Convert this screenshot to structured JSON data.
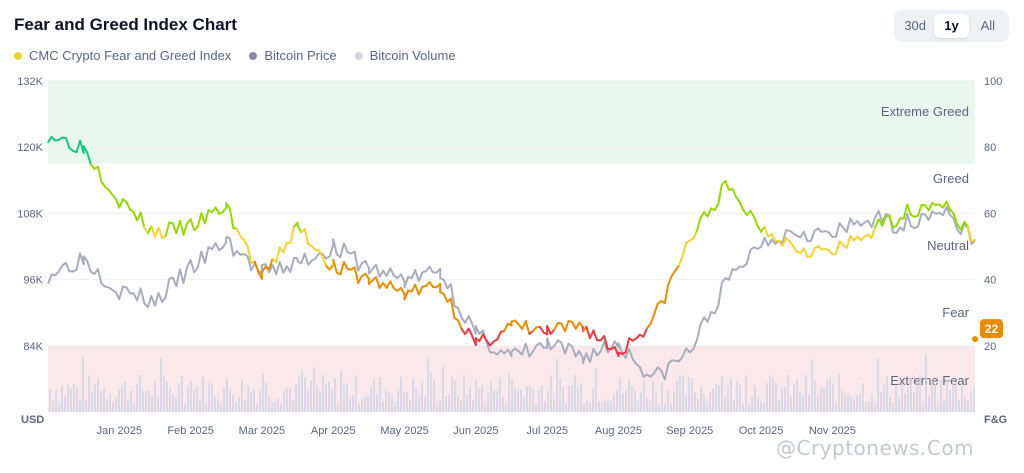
{
  "header": {
    "title": "Fear and Greed Index Chart"
  },
  "range_selector": {
    "options": [
      "30d",
      "1y",
      "All"
    ],
    "selected": "1y"
  },
  "legend": [
    {
      "label": "CMC Crypto Fear and Greed Index",
      "color": "#f0d12e"
    },
    {
      "label": "Bitcoin Price",
      "color": "#858ca2"
    },
    {
      "label": "Bitcoin Volume",
      "color": "#cfd6e4"
    }
  ],
  "watermark": {
    "text": "@Cryptonews.Com"
  },
  "chart_data": {
    "type": "line",
    "y_left": {
      "label": "USD",
      "ticks": [
        "132K",
        "120K",
        "108K",
        "96K",
        "84K"
      ],
      "range": [
        72000,
        132000
      ]
    },
    "y_right": {
      "label": "F&G",
      "ticks": [
        100,
        80,
        60,
        40,
        20
      ],
      "range": [
        0,
        100
      ]
    },
    "x_ticks": [
      "Jan 2025",
      "Feb 2025",
      "Mar 2025",
      "Apr 2025",
      "May 2025",
      "Jun 2025",
      "Jul 2025",
      "Aug 2025",
      "Sep 2025",
      "Oct 2025",
      "Nov 2025"
    ],
    "zones": [
      {
        "label": "Extreme Greed",
        "from": 75,
        "to": 100,
        "color": "#e9f8ee"
      },
      {
        "label": "Greed",
        "from": 55,
        "to": 75
      },
      {
        "label": "Neutral",
        "from": 45,
        "to": 55
      },
      {
        "label": "Fear",
        "from": 25,
        "to": 45
      },
      {
        "label": "Extreme Fear",
        "from": 0,
        "to": 20,
        "color": "#fbe8ea"
      }
    ],
    "current_value": 22,
    "fg_colors": {
      "extreme_greed": "#16c784",
      "greed": "#93d900",
      "neutral": "#f3d42f",
      "fear": "#ea8c00",
      "extreme_fear": "#ea3943"
    },
    "series": [
      {
        "name": "Bitcoin Price",
        "x": [
          0,
          0.5,
          1,
          1.5,
          2,
          2.5,
          3,
          3.5,
          4,
          4.5,
          5,
          5.5,
          6,
          6.5,
          7,
          7.5,
          8,
          8.5,
          9,
          9.5,
          10,
          10.5,
          11,
          11.5,
          12,
          12.5,
          13
        ],
        "values": [
          97000,
          100000,
          94000,
          92000,
          98000,
          103000,
          97000,
          99000,
          102000,
          98000,
          96000,
          97500,
          86000,
          82000,
          84000,
          82000,
          84500,
          78000,
          83000,
          95000,
          103000,
          105000,
          104000,
          107000,
          106000,
          109000,
          103000
        ]
      },
      {
        "name": "CMC Crypto Fear and Greed Index",
        "x": [
          0,
          0.5,
          1,
          1.5,
          2,
          2.5,
          3,
          3.5,
          4,
          4.5,
          5,
          5.5,
          6,
          6.5,
          7,
          7.5,
          8,
          8.5,
          9,
          9.5,
          10,
          10.5,
          11,
          11.5,
          12,
          12.5,
          13
        ],
        "values": [
          84,
          80,
          64,
          54,
          56,
          62,
          40,
          56,
          44,
          40,
          36,
          38,
          20,
          26,
          24,
          26,
          18,
          28,
          52,
          68,
          56,
          50,
          48,
          54,
          60,
          64,
          52
        ]
      }
    ],
    "volume_note": "Bitcoin Volume shown as bars along the bottom"
  }
}
